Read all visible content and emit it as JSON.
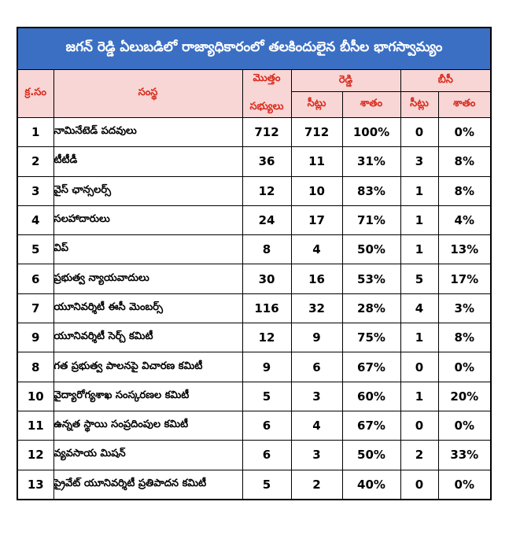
{
  "title": "జగన్ రెడ్డి ఏలుబడిలో రాజ్యాధికారంలో తలకిందులైన బీసీల భాగస్వామ్యం",
  "headers": {
    "serial": "క్ర.సం",
    "institution": "సంస్థ",
    "total_line1": "మొత్తం",
    "total_line2": "సభ్యులు",
    "reddy": "రెడ్డి",
    "bc": "బీసీ",
    "seats": "సీట్లు",
    "percent": "శాతం"
  },
  "rows": [
    {
      "sno": "1",
      "name": "నామినేటెడ్ పదవులు",
      "total": "712",
      "reddy_seats": "712",
      "reddy_pct": "100%",
      "bc_seats": "0",
      "bc_pct": "0%"
    },
    {
      "sno": "2",
      "name": "టీటీడీ",
      "total": "36",
      "reddy_seats": "11",
      "reddy_pct": "31%",
      "bc_seats": "3",
      "bc_pct": "8%"
    },
    {
      "sno": "3",
      "name": "వైస్ ఛాన్సలర్స్",
      "total": "12",
      "reddy_seats": "10",
      "reddy_pct": "83%",
      "bc_seats": "1",
      "bc_pct": "8%"
    },
    {
      "sno": "4",
      "name": "సలహాదారులు",
      "total": "24",
      "reddy_seats": "17",
      "reddy_pct": "71%",
      "bc_seats": "1",
      "bc_pct": "4%"
    },
    {
      "sno": "5",
      "name": "విప్",
      "total": "8",
      "reddy_seats": "4",
      "reddy_pct": "50%",
      "bc_seats": "1",
      "bc_pct": "13%"
    },
    {
      "sno": "6",
      "name": "ప్రభుత్వ న్యాయవాదులు",
      "total": "30",
      "reddy_seats": "16",
      "reddy_pct": "53%",
      "bc_seats": "5",
      "bc_pct": "17%"
    },
    {
      "sno": "7",
      "name": "యూనివర్శిటీ ఈసీ మెంబర్స్",
      "total": "116",
      "reddy_seats": "32",
      "reddy_pct": "28%",
      "bc_seats": "4",
      "bc_pct": "3%"
    },
    {
      "sno": "9",
      "name": "యూనివర్శిటీ సెర్చ్ కమిటీ",
      "total": "12",
      "reddy_seats": "9",
      "reddy_pct": "75%",
      "bc_seats": "1",
      "bc_pct": "8%"
    },
    {
      "sno": "8",
      "name": "గత ప్రభుత్వ పాలనపై విచారణ కమిటీ",
      "total": "9",
      "reddy_seats": "6",
      "reddy_pct": "67%",
      "bc_seats": "0",
      "bc_pct": "0%"
    },
    {
      "sno": "10",
      "name": "వైద్యారోగ్యశాఖ సంస్కరణల కమిటీ",
      "total": "5",
      "reddy_seats": "3",
      "reddy_pct": "60%",
      "bc_seats": "1",
      "bc_pct": "20%"
    },
    {
      "sno": "11",
      "name": "ఉన్నత స్థాయి సంప్రదింపుల కమిటీ",
      "total": "6",
      "reddy_seats": "4",
      "reddy_pct": "67%",
      "bc_seats": "0",
      "bc_pct": "0%"
    },
    {
      "sno": "12",
      "name": "వ్యవసాయ మిషన్",
      "total": "6",
      "reddy_seats": "3",
      "reddy_pct": "50%",
      "bc_seats": "2",
      "bc_pct": "33%"
    },
    {
      "sno": "13",
      "name": "ప్రైవేట్ యూనివర్శిటీ ప్రతిపాదన కమిటీ",
      "total": "5",
      "reddy_seats": "2",
      "reddy_pct": "40%",
      "bc_seats": "0",
      "bc_pct": "0%"
    }
  ],
  "colors": {
    "title_bg": "#3b6fc4",
    "header_bg": "#f9d6d6",
    "header_text": "#d82a1c"
  }
}
